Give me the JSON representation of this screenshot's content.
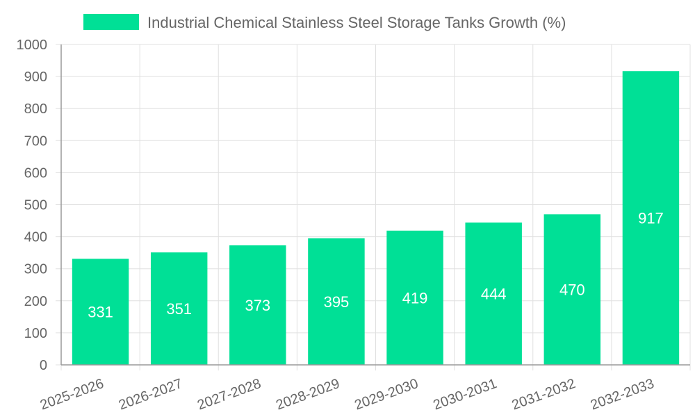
{
  "chart_data": {
    "type": "bar",
    "title": "",
    "xlabel": "",
    "ylabel": "",
    "categories": [
      "2025-2026",
      "2026-2027",
      "2027-2028",
      "2028-2029",
      "2029-2030",
      "2030-2031",
      "2031-2032",
      "2032-2033"
    ],
    "series": [
      {
        "name": "Industrial Chemical Stainless Steel Storage Tanks Growth (%)",
        "values": [
          331,
          351,
          373,
          395,
          419,
          444,
          470,
          917
        ]
      }
    ],
    "ylim": [
      0,
      1000
    ],
    "yticks": [
      0,
      100,
      200,
      300,
      400,
      500,
      600,
      700,
      800,
      900,
      1000
    ],
    "grid": true,
    "legend": "top-center",
    "bar_labels": true
  },
  "colors": {
    "bar": "#00e096",
    "grid": "#e0e0e0",
    "axis": "#999999",
    "text": "#666666",
    "bar_label": "#ffffff"
  }
}
